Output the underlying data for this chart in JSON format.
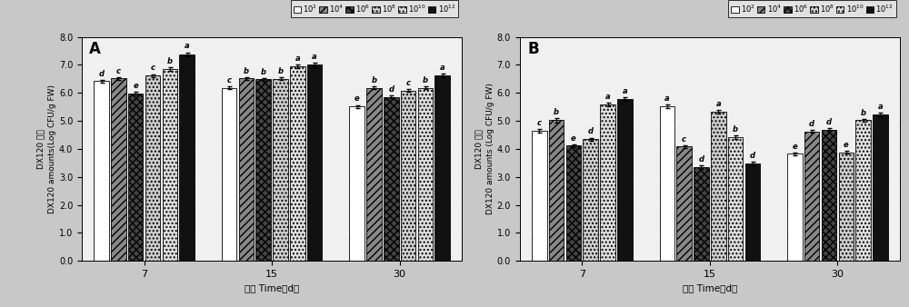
{
  "panel_A": {
    "title": "A",
    "groups": [
      "7",
      "15",
      "30"
    ],
    "values": [
      [
        6.42,
        6.52,
        5.98,
        6.62,
        6.85,
        7.38
      ],
      [
        6.18,
        6.52,
        6.48,
        6.5,
        6.95,
        7.0
      ],
      [
        5.52,
        6.18,
        5.85,
        6.08,
        6.18,
        6.62
      ]
    ],
    "letters": [
      [
        "d",
        "c",
        "e",
        "c",
        "b",
        "a"
      ],
      [
        "c",
        "b",
        "b",
        "b",
        "a",
        "a"
      ],
      [
        "e",
        "b",
        "d",
        "c",
        "b",
        "a"
      ]
    ],
    "errors": [
      [
        0.05,
        0.05,
        0.05,
        0.05,
        0.07,
        0.07
      ],
      [
        0.05,
        0.05,
        0.05,
        0.05,
        0.07,
        0.07
      ],
      [
        0.05,
        0.05,
        0.05,
        0.05,
        0.05,
        0.07
      ]
    ],
    "ylabel_cn": "DX120 数量",
    "ylabel_en": "DX120 amounts(Log CFU/g FW)",
    "xlabel": "时间 Time（d）",
    "ylim": [
      0,
      8.0
    ],
    "yticks": [
      0.0,
      1.0,
      2.0,
      3.0,
      4.0,
      5.0,
      6.0,
      7.0,
      8.0
    ]
  },
  "panel_B": {
    "title": "B",
    "groups": [
      "7",
      "15",
      "30"
    ],
    "values": [
      [
        4.65,
        5.02,
        4.12,
        4.35,
        5.58,
        5.78
      ],
      [
        5.52,
        4.08,
        3.35,
        5.32,
        4.42,
        3.48
      ],
      [
        3.82,
        4.62,
        4.68,
        3.88,
        5.02,
        5.22
      ]
    ],
    "letters": [
      [
        "c",
        "b",
        "e",
        "d",
        "a",
        "a"
      ],
      [
        "a",
        "c",
        "d",
        "a",
        "b",
        "d"
      ],
      [
        "e",
        "d",
        "d",
        "e",
        "b",
        "a"
      ]
    ],
    "errors": [
      [
        0.07,
        0.07,
        0.05,
        0.05,
        0.07,
        0.07
      ],
      [
        0.07,
        0.05,
        0.07,
        0.07,
        0.05,
        0.07
      ],
      [
        0.05,
        0.05,
        0.05,
        0.05,
        0.05,
        0.07
      ]
    ],
    "ylabel_cn": "DX120 数量",
    "ylabel_en": "DX120 amounts (Log CFU/g FW)",
    "xlabel": "时间 Time（d）",
    "ylim": [
      0,
      8.0
    ],
    "yticks": [
      0.0,
      1.0,
      2.0,
      3.0,
      4.0,
      5.0,
      6.0,
      7.0,
      8.0
    ]
  },
  "legend_labels": [
    "$10^2$",
    "$10^4$",
    "$10^6$",
    "$10^8$",
    "$10^{10}$",
    "$10^{12}$"
  ],
  "bar_styles": [
    {
      "color": "white",
      "hatch": "",
      "edgecolor": "black"
    },
    {
      "color": "#888888",
      "hatch": "////",
      "edgecolor": "black"
    },
    {
      "color": "#444444",
      "hatch": "xxxx",
      "edgecolor": "black"
    },
    {
      "color": "#cccccc",
      "hatch": "....",
      "edgecolor": "black"
    },
    {
      "color": "#dddddd",
      "hatch": "....",
      "edgecolor": "black"
    },
    {
      "color": "#111111",
      "hatch": "",
      "edgecolor": "black"
    }
  ],
  "plot_bg": "#f0f0f0",
  "fig_bg": "#c8c8c8"
}
